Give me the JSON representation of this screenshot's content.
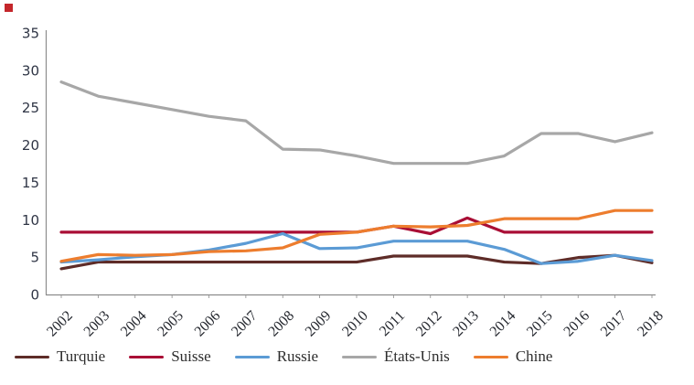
{
  "page": {
    "background": "#ffffff",
    "red_marker_color": "#c4262b"
  },
  "chart_data": {
    "type": "line",
    "title": "",
    "categories": [
      "2002",
      "2003",
      "2004",
      "2005",
      "2006",
      "2007",
      "2008",
      "2009",
      "2010",
      "2011",
      "2012",
      "2013",
      "2014",
      "2015",
      "2016",
      "2017",
      "2018"
    ],
    "series": [
      {
        "name": "Turquie",
        "color": "#5e2c28",
        "values": [
          3.5,
          4.4,
          4.4,
          4.4,
          4.4,
          4.4,
          4.4,
          4.4,
          4.4,
          5.2,
          5.2,
          5.2,
          4.4,
          4.2,
          5.0,
          5.3,
          4.3
        ]
      },
      {
        "name": "Suisse",
        "color": "#a90e35",
        "values": [
          8.4,
          8.4,
          8.4,
          8.4,
          8.4,
          8.4,
          8.4,
          8.4,
          8.4,
          9.2,
          8.2,
          10.3,
          8.4,
          8.4,
          8.4,
          8.4,
          8.4
        ]
      },
      {
        "name": "Russie",
        "color": "#5b9bd5",
        "values": [
          4.4,
          4.7,
          5.1,
          5.4,
          6.0,
          6.9,
          8.2,
          6.2,
          6.3,
          7.2,
          7.2,
          7.2,
          6.1,
          4.2,
          4.5,
          5.3,
          4.6
        ]
      },
      {
        "name": "États-Unis",
        "color": "#a7a7a7",
        "values": [
          28.5,
          26.6,
          25.7,
          24.8,
          23.9,
          23.3,
          19.5,
          19.4,
          18.6,
          17.6,
          17.6,
          17.6,
          18.6,
          21.6,
          21.6,
          20.5,
          21.7
        ]
      },
      {
        "name": "Chine",
        "color": "#ed7d2e",
        "values": [
          4.5,
          5.4,
          5.3,
          5.4,
          5.8,
          5.9,
          6.3,
          8.1,
          8.4,
          9.2,
          9.1,
          9.3,
          10.2,
          10.2,
          10.2,
          11.3,
          11.3
        ]
      }
    ],
    "ylim": [
      0,
      35
    ],
    "y_ticks": [
      0,
      5,
      10,
      15,
      20,
      25,
      30,
      35
    ],
    "grid": false,
    "legend_position": "bottom",
    "axis_color": "#8c8c8c",
    "y_tick_label_color": "#2f3545",
    "x_tick_label_color": "#24272e",
    "line_width": 3.2
  }
}
